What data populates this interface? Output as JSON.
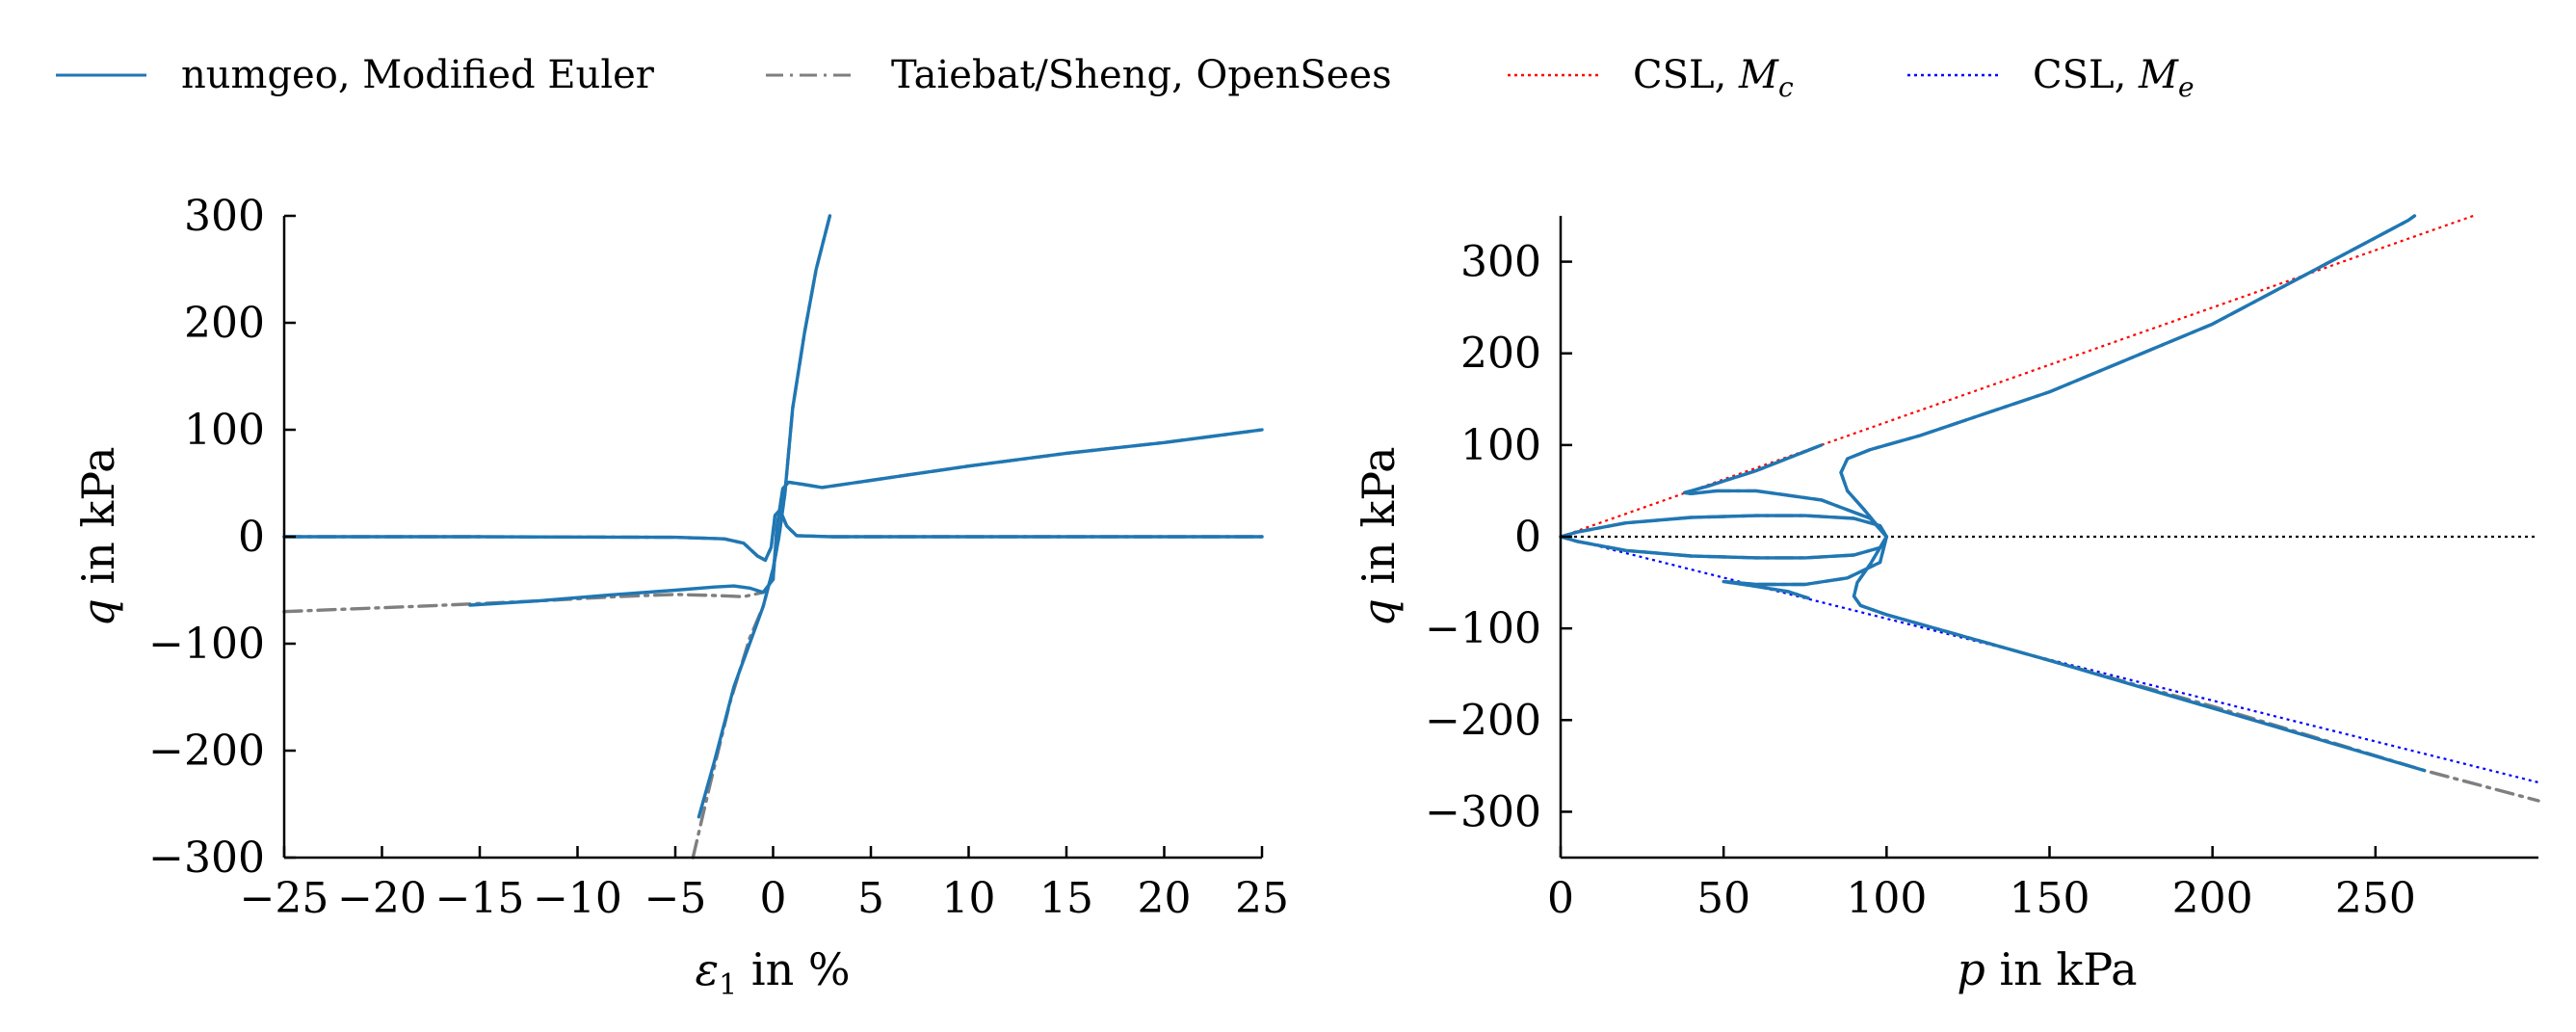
{
  "legend": {
    "items": [
      {
        "label": "numgeo, Modified Euler",
        "color": "#1f77b4",
        "style": "solid"
      },
      {
        "label": "Taiebat/Sheng, OpenSees",
        "color": "#7f7f7f",
        "style": "dashdot"
      },
      {
        "label": "CSL, ",
        "symbol": "M",
        "sub": "c",
        "color": "#ff0000",
        "style": "dotted"
      },
      {
        "label": "CSL, ",
        "symbol": "M",
        "sub": "e",
        "color": "#0000ff",
        "style": "dotted"
      }
    ]
  },
  "chart_data": [
    {
      "type": "line",
      "id": "left",
      "xlabel_symbol": "ε",
      "xlabel_sub": "1",
      "xlabel_rest": " in %",
      "ylabel_symbol": "q",
      "ylabel_rest": " in kPa",
      "xlim": [
        -25,
        25
      ],
      "ylim": [
        -300,
        300
      ],
      "xticks": [
        -25,
        -20,
        -15,
        -10,
        -5,
        0,
        5,
        10,
        15,
        20,
        25
      ],
      "yticks": [
        -300,
        -200,
        -100,
        0,
        100,
        200,
        300
      ],
      "xtick_labels": [
        "−25",
        "−20",
        "−15",
        "−10",
        "−5",
        "0",
        "5",
        "10",
        "15",
        "20",
        "25"
      ],
      "ytick_labels": [
        "−300",
        "−200",
        "−100",
        "0",
        "100",
        "200",
        "300"
      ],
      "series": [
        {
          "name": "numgeo, Modified Euler",
          "color": "#1f77b4",
          "style": "solid",
          "curves": [
            [
              [
                -25,
                0
              ],
              [
                -15,
                0
              ],
              [
                -5,
                -0.5
              ],
              [
                -2.5,
                -2
              ],
              [
                -1.5,
                -6
              ],
              [
                -0.8,
                -18
              ],
              [
                -0.4,
                -22
              ],
              [
                -0.1,
                -10
              ],
              [
                0.1,
                20
              ],
              [
                0.35,
                25
              ],
              [
                0.7,
                10
              ],
              [
                1.2,
                1
              ],
              [
                3,
                0
              ],
              [
                10,
                0
              ],
              [
                25,
                0
              ]
            ],
            [
              [
                -15.5,
                -64
              ],
              [
                -12,
                -60
              ],
              [
                -8,
                -54
              ],
              [
                -5,
                -50
              ],
              [
                -3,
                -47
              ],
              [
                -2,
                -46
              ],
              [
                -1.2,
                -48
              ],
              [
                -0.5,
                -52
              ],
              [
                0,
                -40
              ],
              [
                0.2,
                10
              ],
              [
                0.5,
                45
              ],
              [
                0.8,
                51
              ],
              [
                1.5,
                49
              ],
              [
                2.5,
                46
              ],
              [
                4,
                50
              ],
              [
                7,
                58
              ],
              [
                10,
                66
              ],
              [
                15,
                78
              ],
              [
                20,
                88
              ],
              [
                25,
                100
              ]
            ],
            [
              [
                -3.8,
                -262
              ],
              [
                -3,
                -210
              ],
              [
                -2,
                -140
              ],
              [
                -1,
                -90
              ],
              [
                -0.5,
                -65
              ],
              [
                0,
                -30
              ],
              [
                0.3,
                0
              ],
              [
                0.6,
                40
              ],
              [
                1,
                120
              ],
              [
                1.6,
                190
              ],
              [
                2.2,
                250
              ],
              [
                2.9,
                300
              ]
            ]
          ]
        },
        {
          "name": "Taiebat/Sheng, OpenSees",
          "color": "#7f7f7f",
          "style": "dashdot",
          "curves": [
            [
              [
                -25,
                0
              ],
              [
                -15,
                0
              ],
              [
                -5,
                -0.5
              ],
              [
                -2.5,
                -2
              ],
              [
                -1.5,
                -6
              ],
              [
                -0.8,
                -18
              ],
              [
                -0.4,
                -22
              ],
              [
                -0.1,
                -10
              ],
              [
                0.1,
                20
              ],
              [
                0.35,
                25
              ],
              [
                0.7,
                10
              ],
              [
                1.2,
                1
              ],
              [
                3,
                0
              ],
              [
                10,
                0
              ],
              [
                25,
                0
              ]
            ],
            [
              [
                -25,
                -70
              ],
              [
                -18,
                -65
              ],
              [
                -12,
                -60
              ],
              [
                -8,
                -56
              ],
              [
                -5,
                -54
              ],
              [
                -3,
                -55
              ],
              [
                -1.5,
                -56
              ],
              [
                -0.5,
                -52
              ],
              [
                0,
                -40
              ],
              [
                0.2,
                10
              ],
              [
                0.5,
                45
              ],
              [
                0.8,
                51
              ],
              [
                1.5,
                49
              ],
              [
                2.5,
                46
              ],
              [
                4,
                50
              ],
              [
                7,
                58
              ],
              [
                10,
                66
              ],
              [
                15,
                78
              ],
              [
                20,
                88
              ],
              [
                25,
                100
              ]
            ],
            [
              [
                -4.1,
                -300
              ],
              [
                -3.2,
                -230
              ],
              [
                -2.2,
                -155
              ],
              [
                -1.2,
                -95
              ],
              [
                -0.5,
                -65
              ],
              [
                0,
                -30
              ],
              [
                0.3,
                0
              ],
              [
                0.6,
                40
              ],
              [
                1,
                120
              ],
              [
                1.6,
                190
              ],
              [
                2.2,
                250
              ],
              [
                2.9,
                300
              ]
            ]
          ]
        }
      ]
    },
    {
      "type": "line",
      "id": "right",
      "xlabel_symbol": "p",
      "xlabel_rest": " in kPa",
      "ylabel_symbol": "q",
      "ylabel_rest": " in kPa",
      "xlim": [
        0,
        300
      ],
      "ylim": [
        -350,
        350
      ],
      "xticks": [
        0,
        50,
        100,
        150,
        200,
        250
      ],
      "yticks": [
        -300,
        -200,
        -100,
        0,
        100,
        200,
        300
      ],
      "xtick_labels": [
        "0",
        "50",
        "100",
        "150",
        "200",
        "250"
      ],
      "ytick_labels": [
        "−300",
        "−200",
        "−100",
        "0",
        "100",
        "200",
        "300"
      ],
      "reference_lines": [
        {
          "name": "CSL, Mc",
          "color": "#ff0000",
          "style": "dotted",
          "points": [
            [
              0,
              0
            ],
            [
              280,
              350
            ]
          ]
        },
        {
          "name": "CSL, Me",
          "color": "#0000ff",
          "style": "dotted",
          "points": [
            [
              0,
              0
            ],
            [
              300,
              -268
            ]
          ]
        },
        {
          "name": "q = 0",
          "color": "#000000",
          "style": "dotted",
          "points": [
            [
              0,
              0
            ],
            [
              300,
              0
            ]
          ]
        }
      ],
      "series": [
        {
          "name": "numgeo, Modified Euler",
          "color": "#1f77b4",
          "style": "solid",
          "curves": [
            [
              [
                100,
                0
              ],
              [
                98,
                12
              ],
              [
                90,
                20
              ],
              [
                75,
                23
              ],
              [
                60,
                23
              ],
              [
                40,
                21
              ],
              [
                20,
                15
              ],
              [
                5,
                5
              ],
              [
                0,
                0
              ]
            ],
            [
              [
                100,
                0
              ],
              [
                98,
                -12
              ],
              [
                90,
                -20
              ],
              [
                75,
                -23
              ],
              [
                60,
                -23
              ],
              [
                40,
                -21
              ],
              [
                20,
                -15
              ],
              [
                5,
                -5
              ],
              [
                0,
                0
              ]
            ],
            [
              [
                100,
                0
              ],
              [
                95,
                20
              ],
              [
                80,
                40
              ],
              [
                60,
                50
              ],
              [
                48,
                50
              ],
              [
                40,
                47
              ],
              [
                38,
                48
              ],
              [
                45,
                55
              ],
              [
                60,
                72
              ],
              [
                80,
                100
              ]
            ],
            [
              [
                100,
                0
              ],
              [
                98,
                -28
              ],
              [
                88,
                -45
              ],
              [
                75,
                -52
              ],
              [
                60,
                -52
              ],
              [
                50,
                -49
              ],
              [
                58,
                -53
              ],
              [
                70,
                -60
              ],
              [
                76,
                -67
              ]
            ],
            [
              [
                100,
                0
              ],
              [
                93,
                30
              ],
              [
                88,
                50
              ],
              [
                86,
                70
              ],
              [
                88,
                85
              ],
              [
                95,
                95
              ],
              [
                110,
                110
              ],
              [
                150,
                158
              ],
              [
                200,
                232
              ],
              [
                260,
                345
              ],
              [
                262,
                350
              ]
            ],
            [
              [
                100,
                0
              ],
              [
                95,
                -30
              ],
              [
                91,
                -50
              ],
              [
                90,
                -65
              ],
              [
                92,
                -75
              ],
              [
                100,
                -85
              ],
              [
                150,
                -135
              ],
              [
                200,
                -187
              ],
              [
                265,
                -255
              ]
            ]
          ]
        },
        {
          "name": "Taiebat/Sheng, OpenSees",
          "color": "#7f7f7f",
          "style": "dashdot",
          "curves": [
            [
              [
                100,
                0
              ],
              [
                98,
                12
              ],
              [
                90,
                20
              ],
              [
                75,
                23
              ],
              [
                60,
                23
              ],
              [
                40,
                21
              ],
              [
                20,
                15
              ],
              [
                5,
                5
              ],
              [
                0,
                0
              ]
            ],
            [
              [
                100,
                0
              ],
              [
                98,
                -12
              ],
              [
                90,
                -20
              ],
              [
                75,
                -23
              ],
              [
                60,
                -23
              ],
              [
                40,
                -21
              ],
              [
                20,
                -15
              ],
              [
                5,
                -5
              ],
              [
                0,
                0
              ]
            ],
            [
              [
                100,
                0
              ],
              [
                95,
                20
              ],
              [
                80,
                40
              ],
              [
                60,
                50
              ],
              [
                48,
                50
              ],
              [
                40,
                47
              ],
              [
                38,
                48
              ],
              [
                45,
                55
              ],
              [
                60,
                72
              ],
              [
                80,
                100
              ]
            ],
            [
              [
                100,
                0
              ],
              [
                98,
                -28
              ],
              [
                88,
                -45
              ],
              [
                75,
                -52
              ],
              [
                60,
                -52
              ],
              [
                50,
                -49
              ],
              [
                58,
                -53
              ],
              [
                70,
                -60
              ],
              [
                76,
                -67
              ]
            ],
            [
              [
                100,
                0
              ],
              [
                93,
                30
              ],
              [
                88,
                50
              ],
              [
                86,
                70
              ],
              [
                88,
                85
              ],
              [
                95,
                95
              ],
              [
                110,
                110
              ],
              [
                150,
                158
              ],
              [
                200,
                232
              ],
              [
                260,
                345
              ],
              [
                262,
                350
              ]
            ],
            [
              [
                100,
                0
              ],
              [
                95,
                -30
              ],
              [
                91,
                -50
              ],
              [
                90,
                -65
              ],
              [
                92,
                -75
              ],
              [
                100,
                -85
              ],
              [
                150,
                -135
              ],
              [
                200,
                -185
              ],
              [
                265,
                -255
              ],
              [
                300,
                -288
              ]
            ]
          ]
        }
      ]
    }
  ]
}
